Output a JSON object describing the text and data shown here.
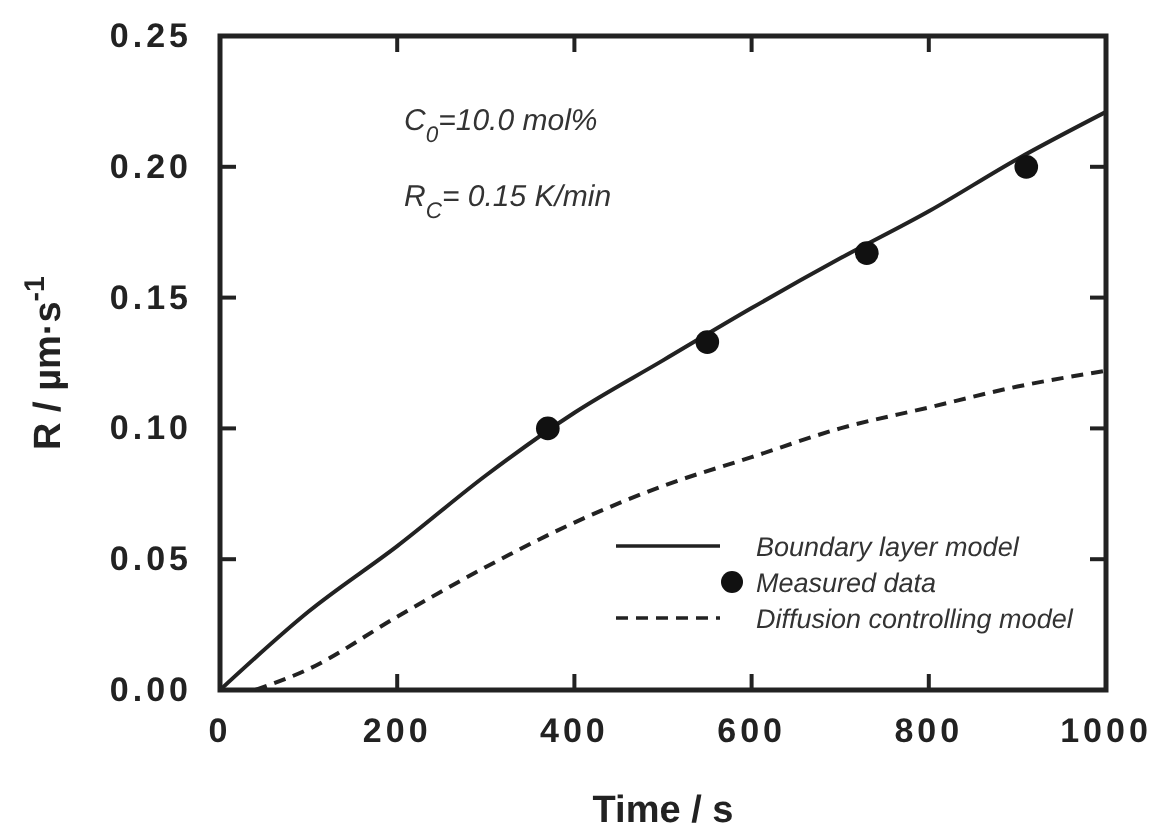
{
  "chart_data": {
    "type": "line",
    "xlabel": "Time / s",
    "ylabel": "R / µm·s$^{-1}$",
    "xlim": [
      0,
      1000
    ],
    "ylim": [
      0,
      0.25
    ],
    "xticks": [
      0,
      200,
      400,
      600,
      800,
      1000
    ],
    "yticks": [
      {
        "value": 0,
        "label": "0.00"
      },
      {
        "value": 0.05,
        "label": "0.05"
      },
      {
        "value": 0.1,
        "label": "0.10"
      },
      {
        "value": 0.15,
        "label": "0.15"
      },
      {
        "value": 0.2,
        "label": "0.20"
      },
      {
        "value": 0.25,
        "label": "0.25"
      }
    ],
    "legend": "bottom right",
    "grid": false,
    "annotations": [
      "C$_{0}$=10.0 mol%",
      "R$_{C}$= 0.15 K/min"
    ],
    "series": [
      {
        "name": "Boundary layer model",
        "color": "#222222",
        "line_style": "solid",
        "marker": "none",
        "x": [
          0,
          100,
          200,
          300,
          400,
          500,
          600,
          700,
          800,
          900,
          1000
        ],
        "values": [
          0,
          0.03,
          0.055,
          0.082,
          0.106,
          0.126,
          0.146,
          0.165,
          0.183,
          0.203,
          0.221
        ]
      },
      {
        "name": "Measured data",
        "type": "scatter",
        "color": "#111111",
        "marker": "circle",
        "x": [
          370,
          550,
          730,
          910
        ],
        "values": [
          0.1,
          0.133,
          0.167,
          0.2
        ]
      },
      {
        "name": "Diffusion controlling model",
        "color": "#222222",
        "line_style": "dashed",
        "marker": "none",
        "x": [
          40,
          100,
          200,
          300,
          400,
          500,
          600,
          700,
          800,
          900,
          1000
        ],
        "values": [
          0,
          0.008,
          0.028,
          0.047,
          0.064,
          0.078,
          0.089,
          0.1,
          0.108,
          0.116,
          0.122
        ]
      }
    ]
  }
}
